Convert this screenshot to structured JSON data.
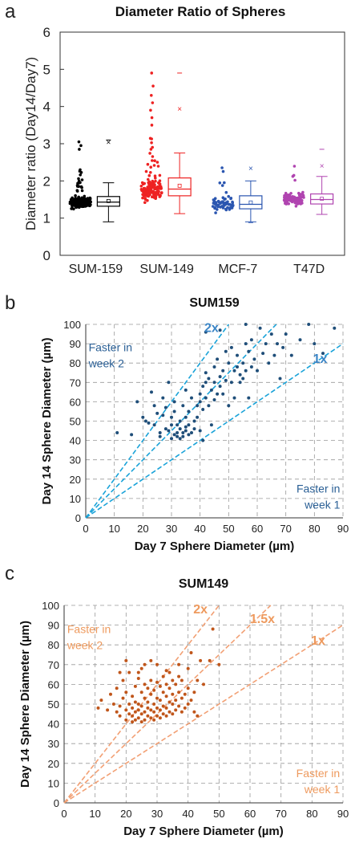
{
  "chart_data": [
    {
      "panel_label": "a",
      "type": "scatter",
      "title": "Diameter Ratio of Spheres",
      "ylabel": "Diameter ratio (Day14/Day7)",
      "ylim": [
        0,
        6
      ],
      "yticks": [
        "0",
        "1",
        "2",
        "3",
        "4",
        "5",
        "6"
      ],
      "categories": [
        "SUM-159",
        "SUM-149",
        "MCF-7",
        "T47D"
      ],
      "colors": [
        "#000000",
        "#ee2222",
        "#2b56b0",
        "#b044b0"
      ],
      "grid": false,
      "boxes": [
        {
          "q1": 1.32,
          "median": 1.43,
          "q3": 1.58,
          "mean": 1.46,
          "whisker_low": 0.9,
          "whisker_high": 1.95,
          "outliers_x": [
            3.05
          ],
          "outliers_dash": [
            3.1
          ]
        },
        {
          "q1": 1.6,
          "median": 1.78,
          "q3": 2.08,
          "mean": 1.87,
          "whisker_low": 1.12,
          "whisker_high": 2.75,
          "outliers_x": [
            3.95
          ],
          "outliers_dash": [
            4.9
          ]
        },
        {
          "q1": 1.25,
          "median": 1.37,
          "q3": 1.6,
          "mean": 1.42,
          "whisker_low": 0.9,
          "whisker_high": 2.0,
          "outliers_x": [
            2.35
          ],
          "outliers_dash": [
            0.88
          ]
        },
        {
          "q1": 1.38,
          "median": 1.5,
          "q3": 1.65,
          "mean": 1.52,
          "whisker_low": 1.1,
          "whisker_high": 2.12,
          "outliers_x": [
            2.42
          ],
          "outliers_dash": [
            2.85
          ]
        }
      ]
    },
    {
      "panel_label": "b",
      "type": "scatter",
      "title": "SUM159",
      "xlabel": "Day 7 Sphere Diameter (µm)",
      "ylabel": "Day 14 Sphere Diameter (µm)",
      "xlim": [
        0,
        90
      ],
      "ylim": [
        0,
        100
      ],
      "xticks": [
        "0",
        "10",
        "20",
        "30",
        "40",
        "50",
        "60",
        "70",
        "80",
        "90"
      ],
      "yticks": [
        "0",
        "10",
        "20",
        "30",
        "40",
        "50",
        "60",
        "70",
        "80",
        "90",
        "100"
      ],
      "grid": true,
      "point_color": "#1f4e79",
      "line_color": "#1aa3d9",
      "label_color": "#3b85c6",
      "reference_lines": [
        {
          "label": "2x",
          "slope": 2
        },
        {
          "label": "1.5x",
          "slope": 1.5,
          "unlabeled": true
        },
        {
          "label": "1x",
          "slope": 1
        }
      ],
      "annotations": [
        {
          "text": [
            "Faster in",
            "week 2"
          ],
          "pos": "top-left"
        },
        {
          "text": [
            "Faster in",
            "week 1"
          ],
          "pos": "bottom-right"
        }
      ],
      "points": [
        [
          11,
          44
        ],
        [
          16,
          43
        ],
        [
          18,
          60
        ],
        [
          20,
          52
        ],
        [
          21,
          50
        ],
        [
          22,
          49
        ],
        [
          23,
          65
        ],
        [
          24,
          58
        ],
        [
          24,
          48
        ],
        [
          25,
          54
        ],
        [
          26,
          44
        ],
        [
          26,
          42
        ],
        [
          27,
          53
        ],
        [
          27,
          62
        ],
        [
          28,
          46
        ],
        [
          28,
          57
        ],
        [
          29,
          45
        ],
        [
          29,
          70
        ],
        [
          30,
          48
        ],
        [
          30,
          52
        ],
        [
          30,
          41
        ],
        [
          31,
          43
        ],
        [
          31,
          55
        ],
        [
          31,
          60
        ],
        [
          32,
          44
        ],
        [
          32,
          42
        ],
        [
          32,
          48
        ],
        [
          33,
          46
        ],
        [
          33,
          41
        ],
        [
          33,
          50
        ],
        [
          34,
          44
        ],
        [
          34,
          58
        ],
        [
          34,
          42
        ],
        [
          35,
          45
        ],
        [
          35,
          47
        ],
        [
          35,
          52
        ],
        [
          35,
          66
        ],
        [
          36,
          48
        ],
        [
          36,
          43
        ],
        [
          36,
          55
        ],
        [
          37,
          44
        ],
        [
          37,
          62
        ],
        [
          38,
          50
        ],
        [
          38,
          46
        ],
        [
          39,
          58
        ],
        [
          39,
          52
        ],
        [
          40,
          60
        ],
        [
          40,
          64
        ],
        [
          40,
          45
        ],
        [
          41,
          56
        ],
        [
          41,
          68
        ],
        [
          41,
          40
        ],
        [
          42,
          62
        ],
        [
          42,
          70
        ],
        [
          42,
          75
        ],
        [
          43,
          58
        ],
        [
          43,
          72
        ],
        [
          44,
          66
        ],
        [
          44,
          48
        ],
        [
          45,
          70
        ],
        [
          45,
          78
        ],
        [
          45,
          61
        ],
        [
          46,
          64
        ],
        [
          46,
          82
        ],
        [
          47,
          68
        ],
        [
          47,
          73
        ],
        [
          48,
          76
        ],
        [
          48,
          64
        ],
        [
          49,
          86
        ],
        [
          49,
          71
        ],
        [
          50,
          58
        ],
        [
          50,
          80
        ],
        [
          51,
          70
        ],
        [
          51,
          88
        ],
        [
          52,
          76
        ],
        [
          52,
          62
        ],
        [
          53,
          78
        ],
        [
          53,
          84
        ],
        [
          54,
          74
        ],
        [
          54,
          70
        ],
        [
          55,
          80
        ],
        [
          55,
          72
        ],
        [
          56,
          76
        ],
        [
          56,
          90
        ],
        [
          57,
          62
        ],
        [
          57,
          86
        ],
        [
          58,
          78
        ],
        [
          58,
          92
        ],
        [
          59,
          82
        ],
        [
          60,
          76
        ],
        [
          61,
          98
        ],
        [
          62,
          85
        ],
        [
          63,
          90
        ],
        [
          64,
          80
        ],
        [
          65,
          95
        ],
        [
          66,
          84
        ],
        [
          67,
          90
        ],
        [
          68,
          72
        ],
        [
          69,
          88
        ],
        [
          70,
          95
        ],
        [
          72,
          84
        ],
        [
          75,
          92
        ],
        [
          78,
          100
        ],
        [
          80,
          90
        ],
        [
          83,
          85
        ],
        [
          87,
          98
        ],
        [
          42,
          96
        ],
        [
          47,
          97
        ],
        [
          56,
          100
        ]
      ]
    },
    {
      "panel_label": "c",
      "type": "scatter",
      "title": "SUM149",
      "xlabel": "Day 7 Sphere Diameter (µm)",
      "ylabel": "Day 14 Sphere Diameter (µm)",
      "xlim": [
        0,
        90
      ],
      "ylim": [
        0,
        100
      ],
      "xticks": [
        "0",
        "10",
        "20",
        "30",
        "40",
        "50",
        "60",
        "70",
        "80",
        "90"
      ],
      "yticks": [
        "0",
        "10",
        "20",
        "30",
        "40",
        "50",
        "60",
        "70",
        "80",
        "90",
        "100"
      ],
      "grid": true,
      "point_color": "#c0561b",
      "line_color": "#f2a074",
      "label_color": "#ee9a5e",
      "reference_lines": [
        {
          "label": "2x",
          "slope": 2
        },
        {
          "label": "1.5x",
          "slope": 1.5
        },
        {
          "label": "1x",
          "slope": 1
        }
      ],
      "annotations": [
        {
          "text": [
            "Faster in",
            "week 2"
          ],
          "pos": "top-left"
        },
        {
          "text": [
            "Faster in",
            "week 1"
          ],
          "pos": "bottom-right"
        }
      ],
      "points": [
        [
          11,
          48
        ],
        [
          12,
          52
        ],
        [
          14,
          47
        ],
        [
          15,
          55
        ],
        [
          16,
          50
        ],
        [
          17,
          46
        ],
        [
          17,
          58
        ],
        [
          18,
          44
        ],
        [
          18,
          49
        ],
        [
          19,
          53
        ],
        [
          19,
          62
        ],
        [
          20,
          42
        ],
        [
          20,
          47
        ],
        [
          20,
          56
        ],
        [
          21,
          45
        ],
        [
          21,
          50
        ],
        [
          21,
          66
        ],
        [
          22,
          41
        ],
        [
          22,
          44
        ],
        [
          22,
          48
        ],
        [
          22,
          54
        ],
        [
          23,
          42
        ],
        [
          23,
          46
        ],
        [
          23,
          51
        ],
        [
          23,
          59
        ],
        [
          24,
          43
        ],
        [
          24,
          47
        ],
        [
          24,
          50
        ],
        [
          24,
          63
        ],
        [
          25,
          41
        ],
        [
          25,
          45
        ],
        [
          25,
          49
        ],
        [
          25,
          56
        ],
        [
          25,
          68
        ],
        [
          26,
          42
        ],
        [
          26,
          46
        ],
        [
          26,
          53
        ],
        [
          26,
          60
        ],
        [
          27,
          44
        ],
        [
          27,
          48
        ],
        [
          27,
          51
        ],
        [
          27,
          58
        ],
        [
          28,
          43
        ],
        [
          28,
          47
        ],
        [
          28,
          55
        ],
        [
          28,
          62
        ],
        [
          29,
          42
        ],
        [
          29,
          46
        ],
        [
          29,
          50
        ],
        [
          29,
          57
        ],
        [
          30,
          44
        ],
        [
          30,
          48
        ],
        [
          30,
          53
        ],
        [
          30,
          61
        ],
        [
          30,
          70
        ],
        [
          31,
          43
        ],
        [
          31,
          47
        ],
        [
          31,
          52
        ],
        [
          31,
          59
        ],
        [
          32,
          45
        ],
        [
          32,
          49
        ],
        [
          32,
          56
        ],
        [
          32,
          64
        ],
        [
          33,
          44
        ],
        [
          33,
          48
        ],
        [
          33,
          54
        ],
        [
          33,
          60
        ],
        [
          34,
          46
        ],
        [
          34,
          51
        ],
        [
          34,
          58
        ],
        [
          34,
          66
        ],
        [
          35,
          45
        ],
        [
          35,
          50
        ],
        [
          35,
          55
        ],
        [
          35,
          62
        ],
        [
          36,
          47
        ],
        [
          36,
          52
        ],
        [
          36,
          60
        ],
        [
          37,
          49
        ],
        [
          37,
          56
        ],
        [
          37,
          64
        ],
        [
          38,
          46
        ],
        [
          38,
          53
        ],
        [
          38,
          62
        ],
        [
          39,
          48
        ],
        [
          39,
          55
        ],
        [
          40,
          50
        ],
        [
          40,
          58
        ],
        [
          40,
          68
        ],
        [
          41,
          52
        ],
        [
          41,
          76
        ],
        [
          42,
          56
        ],
        [
          43,
          62
        ],
        [
          44,
          72
        ],
        [
          45,
          60
        ],
        [
          47,
          72
        ],
        [
          48,
          88
        ],
        [
          50,
          70
        ],
        [
          26,
          70
        ],
        [
          28,
          72
        ],
        [
          20,
          72
        ],
        [
          18,
          66
        ],
        [
          24,
          66
        ],
        [
          33,
          67
        ],
        [
          37,
          70
        ],
        [
          42,
          46
        ],
        [
          43,
          44
        ]
      ]
    }
  ]
}
